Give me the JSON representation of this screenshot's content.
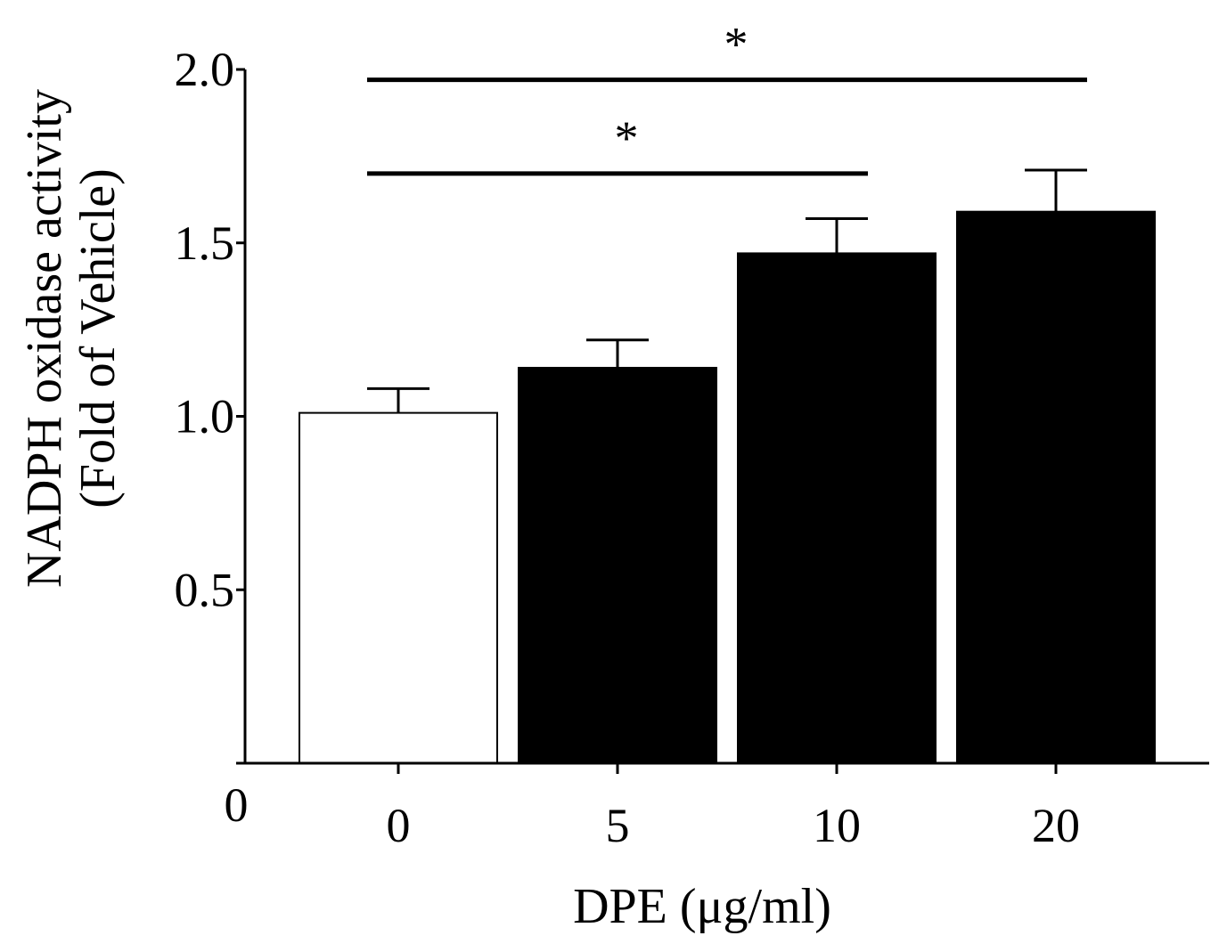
{
  "chart_data": {
    "type": "bar",
    "title": "",
    "xlabel": "DPE (μg/ml)",
    "ylabel_line1": "NADPH oxidase activity",
    "ylabel_line2": "(Fold of Vehicle)",
    "ylim": [
      0,
      2.0
    ],
    "origin_label": "0",
    "yticks": [
      {
        "value": 0.5,
        "label": "0.5"
      },
      {
        "value": 1.0,
        "label": "1.0"
      },
      {
        "value": 1.5,
        "label": "1.5"
      },
      {
        "value": 2.0,
        "label": "2.0"
      }
    ],
    "categories": [
      "0",
      "5",
      "10",
      "20"
    ],
    "values": [
      1.01,
      1.14,
      1.47,
      1.59
    ],
    "errors": [
      0.07,
      0.08,
      0.1,
      0.12
    ],
    "bar_fills": [
      "#ffffff",
      "#000000",
      "#000000",
      "#000000"
    ],
    "significance": [
      {
        "from": "0",
        "to": "10",
        "level": 1.7,
        "label": "*"
      },
      {
        "from": "0",
        "to": "20",
        "level": 1.97,
        "label": "*"
      }
    ],
    "grid": false,
    "legend": "none"
  }
}
